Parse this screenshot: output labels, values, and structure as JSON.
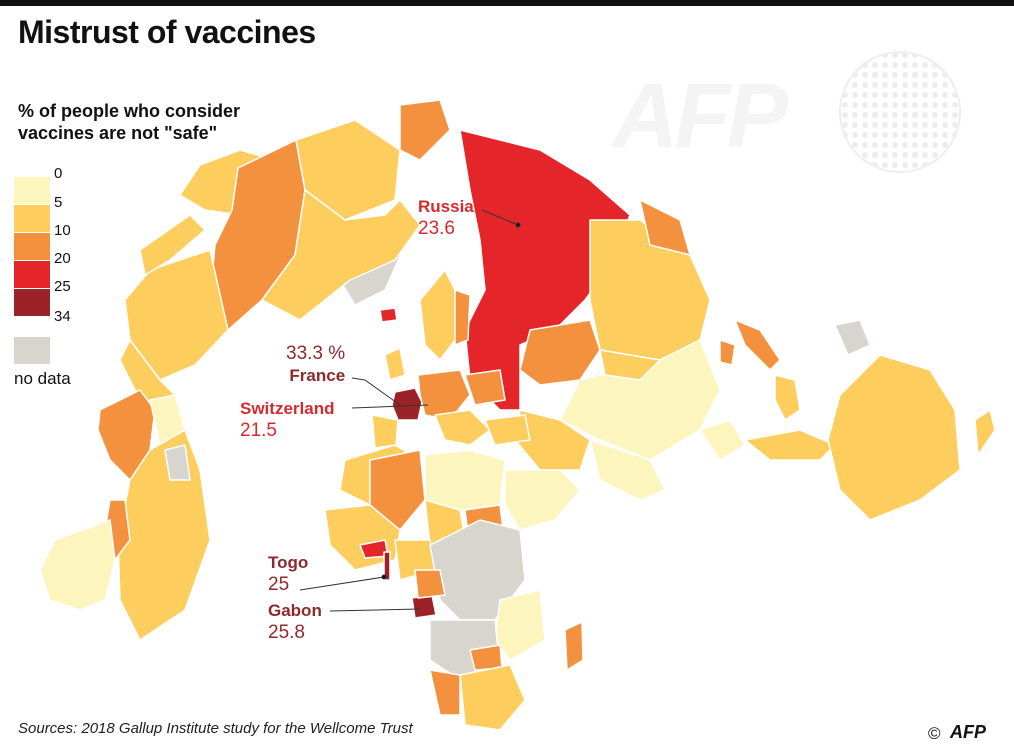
{
  "title": "Mistrust of vaccines",
  "legend": {
    "title_line1": "% of people who consider",
    "title_line2": "vaccines are not \"safe\"",
    "ticks": [
      "0",
      "5",
      "10",
      "20",
      "25",
      "34"
    ],
    "colors": [
      "#fcf5bd",
      "#fdcd5e",
      "#f3913f",
      "#e4262b",
      "#9c2228"
    ],
    "nodata_label": "no data",
    "nodata_color": "#d8d4ce"
  },
  "callouts": {
    "russia": {
      "name": "Russia",
      "value": "23.6"
    },
    "france": {
      "name": "France",
      "value": "33.3 %"
    },
    "switzerland": {
      "name": "Switzerland",
      "value": "21.5"
    },
    "togo": {
      "name": "Togo",
      "value": "25"
    },
    "gabon": {
      "name": "Gabon",
      "value": "25.8"
    }
  },
  "source": "Sources: 2018 Gallup Institute study for the Wellcome Trust",
  "credit": {
    "symbol": "©",
    "agency": "AFP"
  },
  "watermark": "AFP"
}
